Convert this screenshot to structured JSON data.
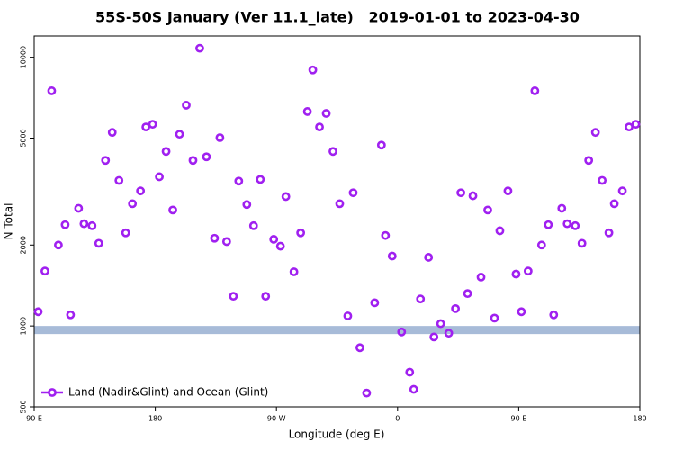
{
  "chart_data": {
    "type": "scatter",
    "title": "55S-50S January (Ver 11.1_late)   2019-01-01 to 2023-04-30",
    "x_label": "Longitude (deg E)",
    "y_label": "N Total",
    "xlim": [
      90,
      540
    ],
    "xticks": [
      {
        "value": 90,
        "label": "90 E"
      },
      180,
      {
        "value": 270,
        "label": "90 W"
      },
      {
        "value": 360,
        "label": "0"
      },
      {
        "value": 450,
        "label": "90 E"
      },
      {
        "value": 540,
        "label": "180"
      }
    ],
    "ylim": [
      500,
      12000
    ],
    "yticks": [
      500,
      1000,
      2000,
      5000,
      10000
    ],
    "y_scale": "log",
    "legend": "lower left",
    "band": {
      "ylim": [
        933,
        1000
      ],
      "color": "#a7bbd8"
    },
    "x": [
      93,
      98,
      103,
      108,
      113,
      117,
      123,
      127,
      133,
      138,
      143,
      148,
      153,
      158,
      163,
      169,
      173,
      178,
      183,
      188,
      193,
      198,
      203,
      208,
      213,
      218,
      224,
      228,
      233,
      238,
      242,
      248,
      253,
      258,
      262,
      268,
      273,
      277,
      283,
      288,
      293,
      297,
      302,
      307,
      312,
      317,
      323,
      327,
      332,
      337,
      343,
      348,
      351,
      356,
      363,
      369,
      372,
      377,
      383,
      387,
      392,
      398,
      403,
      407,
      412,
      416,
      422,
      427,
      432,
      436,
      442,
      448,
      452,
      457,
      462,
      467,
      472,
      476,
      482,
      486,
      492,
      497,
      502,
      507,
      512,
      517,
      521,
      527,
      532,
      537
    ],
    "series": [
      {
        "name": "Land (Nadir&Glint) and Ocean (Glint)",
        "color": "#a020f0",
        "values": [
          1130,
          1600,
          7500,
          2000,
          2380,
          1100,
          2740,
          2400,
          2360,
          2030,
          4130,
          5250,
          3480,
          2220,
          2850,
          3180,
          5500,
          5630,
          3590,
          4460,
          2700,
          5170,
          6630,
          4130,
          10800,
          4260,
          2120,
          5020,
          2060,
          1290,
          3460,
          2830,
          2360,
          3510,
          1290,
          2100,
          1980,
          3030,
          1590,
          2220,
          6280,
          8970,
          5500,
          6180,
          4460,
          2850,
          1090,
          3130,
          830,
          563,
          1220,
          4710,
          2170,
          1820,
          950,
          673,
          581,
          1260,
          1800,
          910,
          1020,
          940,
          1160,
          3130,
          1320,
          3050,
          1520,
          2700,
          1070,
          2260,
          3180,
          1560,
          1130,
          1600,
          7500,
          2000,
          2380,
          1100,
          2740,
          2400,
          2360,
          2030,
          4130,
          5250,
          3480,
          2220,
          2850,
          3180,
          5500,
          5630
        ]
      }
    ]
  }
}
